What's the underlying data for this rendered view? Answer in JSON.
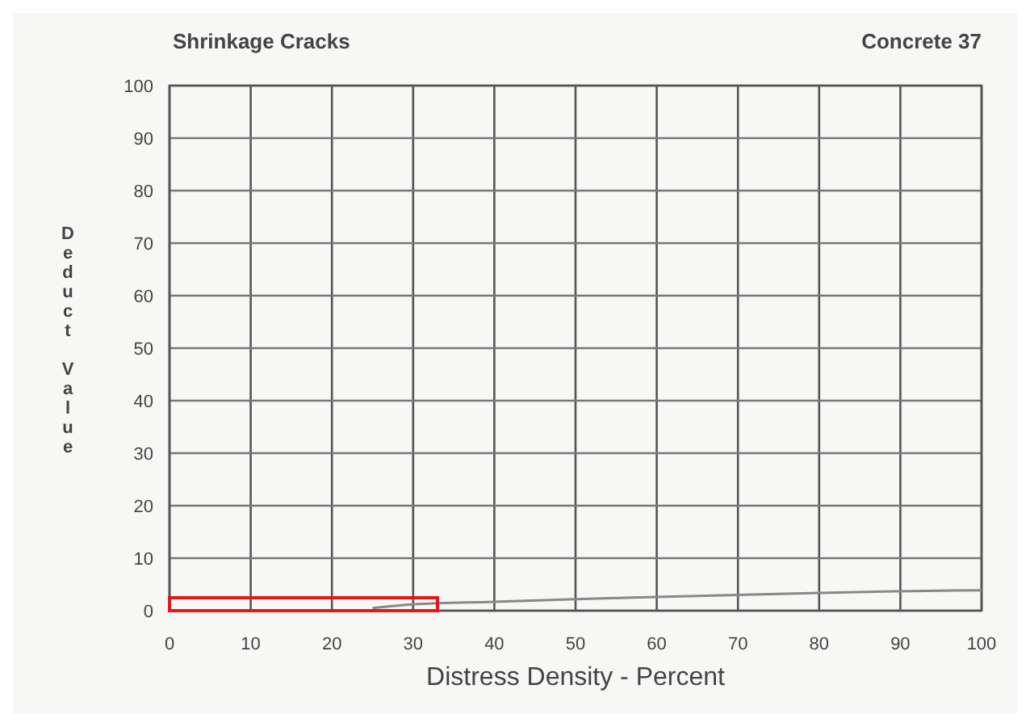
{
  "chart_data": {
    "type": "line",
    "title": "Shrinkage Cracks",
    "subtitle": "Concrete 37",
    "xlabel": "Distress Density - Percent",
    "ylabel": "Deduct Value",
    "x": [
      25,
      30,
      40,
      50,
      60,
      70,
      80,
      90,
      100
    ],
    "series": [
      {
        "color": "#888888",
        "values": [
          0.5,
          1.2,
          1.7,
          2.2,
          2.6,
          3,
          3.4,
          3.7,
          3.9
        ]
      }
    ],
    "xlim": [
      0,
      100
    ],
    "xticks": [
      0,
      10,
      20,
      30,
      40,
      50,
      60,
      70,
      80,
      90,
      100
    ],
    "ylim": [
      0,
      100
    ],
    "yticks": [
      0,
      10,
      20,
      30,
      40,
      50,
      60,
      70,
      80,
      90,
      100
    ],
    "grid": true,
    "marker": "none",
    "line_style": "solid"
  }
}
